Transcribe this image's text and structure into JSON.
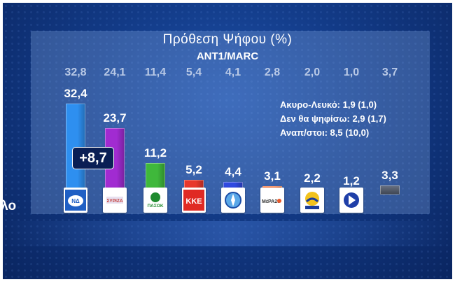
{
  "chart_data": {
    "type": "bar",
    "title": "Πρόθεση Ψήφου (%)",
    "subtitle": "ANT1/MARC",
    "ylim": [
      0,
      35
    ],
    "grid": false,
    "legend": "none",
    "categories": [
      "ΝΔ",
      "ΣΥΡΙΖΑ",
      "ΠΑΣΟΚ",
      "ΚΚΕ",
      "Ελληνική Λύση",
      "ΜέΡΑ25",
      "Νίκη",
      "Πλεύση Ελευθερίας",
      "Άλλο"
    ],
    "series": [
      {
        "values": [
          32.4,
          23.7,
          11.2,
          5.2,
          4.4,
          3.1,
          2.2,
          1.2,
          3.3
        ],
        "labels": [
          "32,4",
          "23,7",
          "11,2",
          "5,2",
          "4,4",
          "3,1",
          "2,2",
          "1,2",
          "3,3"
        ]
      },
      {
        "values": [
          32.8,
          24.1,
          11.4,
          5.4,
          4.1,
          2.8,
          2.0,
          1.0,
          3.7
        ],
        "labels": [
          "32,8",
          "24,1",
          "11,4",
          "5,4",
          "4,1",
          "2,8",
          "2,0",
          "1,0",
          "3,7"
        ]
      }
    ],
    "colors": [
      "#2e8ff0",
      "#a12bd1",
      "#3fb83b",
      "#e8372c",
      "#2f49e0",
      "#f0642a",
      "#1e3ea8",
      "#2b47d8",
      "#555e6e"
    ],
    "annotation": "+8,7",
    "notes": [
      "Ακυρο-Λευκό: 1,9 (1,0)",
      "Δεν θα ψηφίσω: 2,9 (1,7)",
      "Αναπ/στοι: 8,5 (10,0)"
    ],
    "other_label": "Αλλο"
  },
  "logos": {
    "nd": "ΝΔ",
    "syriza": "ΣΥΡΙΖΑ",
    "pasok": "ΠΑΣΟΚ",
    "kke": "ΚΚΕ",
    "mera25": "ΜέΡΑ25"
  }
}
